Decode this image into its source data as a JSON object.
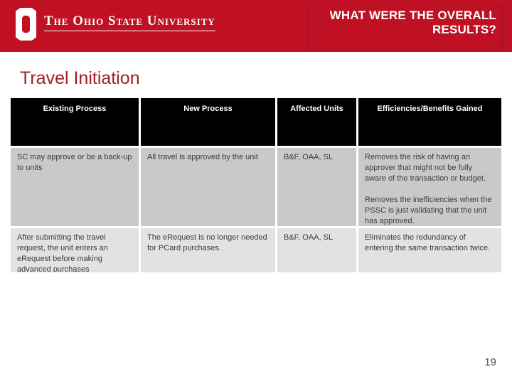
{
  "banner": {
    "university_name": "The Ohio State University",
    "slide_title": "WHAT WERE THE OVERALL RESULTS?",
    "logo": "block-o-icon",
    "bg_color": "#bf1123",
    "title_box_border_color": "#9a0e22"
  },
  "heading": "Travel Initiation",
  "table": {
    "headers": [
      "Existing Process",
      "New Process",
      "Affected Units",
      "Efficiencies/Benefits Gained"
    ],
    "rows": [
      {
        "existing_process": "SC may approve or be a back-up to units",
        "new_process": "All travel is approved by the unit",
        "affected_units": "B&F, OAA, SL",
        "benefits": [
          "Removes the risk of having an approver that might not be fully aware of the transaction or budget.",
          "Removes the inefficiencies when the PSSC is just validating that the unit has approved."
        ]
      },
      {
        "existing_process": "After submitting the travel request, the unit enters an eRequest before making advanced purchases",
        "new_process": "The eRequest is no longer needed for PCard purchases.",
        "affected_units": "B&F, OAA, SL",
        "benefits": [
          "Eliminates the redundancy of entering the same transaction twice."
        ]
      }
    ]
  },
  "page_number": "19",
  "colors": {
    "banner_red": "#bf1123",
    "heading_red": "#a02023",
    "table_header_bg": "#000000",
    "row1_bg": "#c9c9c9",
    "row2_bg": "#e2e2e2",
    "body_text": "#3c3c3c"
  }
}
